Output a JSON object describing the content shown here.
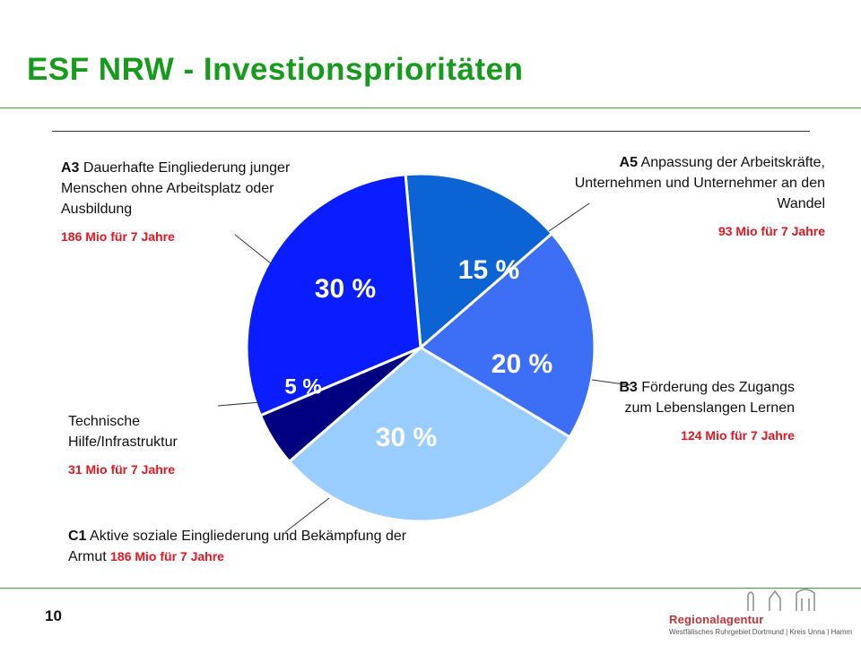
{
  "title": "ESF NRW  -  Investionsprioritäten",
  "page_number": "10",
  "logo": {
    "name": "Regionalagentur",
    "sub": "Westfälisches Ruhrgebiet  Dortmund | Kreis Unna | Hamm"
  },
  "annotations": {
    "a3": {
      "code": "A3",
      "text": " Dauerhafte Eingliederung junger Menschen ohne Arbeitsplatz oder Ausbildung",
      "amount": "186 Mio für 7 Jahre"
    },
    "a5": {
      "code": "A5",
      "text": " Anpassung der Arbeitskräfte, Unternehmen und Unternehmer an den Wandel",
      "amount": "93 Mio für 7 Jahre"
    },
    "b3": {
      "code": "B3",
      "text": " Förderung des Zugangs zum Lebenslangen Lernen",
      "amount": "124 Mio für 7 Jahre"
    },
    "th": {
      "text": "Technische Hilfe/Infrastruktur",
      "amount": "31 Mio für 7 Jahre"
    },
    "c1": {
      "code": "C1",
      "text": " Aktive soziale Eingliederung und Bekämpfung der Armut ",
      "amount": "186 Mio für 7 Jahre"
    }
  },
  "chart_data": {
    "type": "pie",
    "start_angle_deg": -5,
    "direction": "clockwise",
    "slices": [
      {
        "label": "15 %",
        "value": 15,
        "color": "#0b63d4"
      },
      {
        "label": "20 %",
        "value": 20,
        "color": "#3c6ff6"
      },
      {
        "label": "30 %",
        "value": 30,
        "color": "#99ccff"
      },
      {
        "label": "5 %",
        "value": 5,
        "color": "#000080"
      },
      {
        "label": "30 %",
        "value": 30,
        "color": "#0a1dff"
      }
    ]
  }
}
